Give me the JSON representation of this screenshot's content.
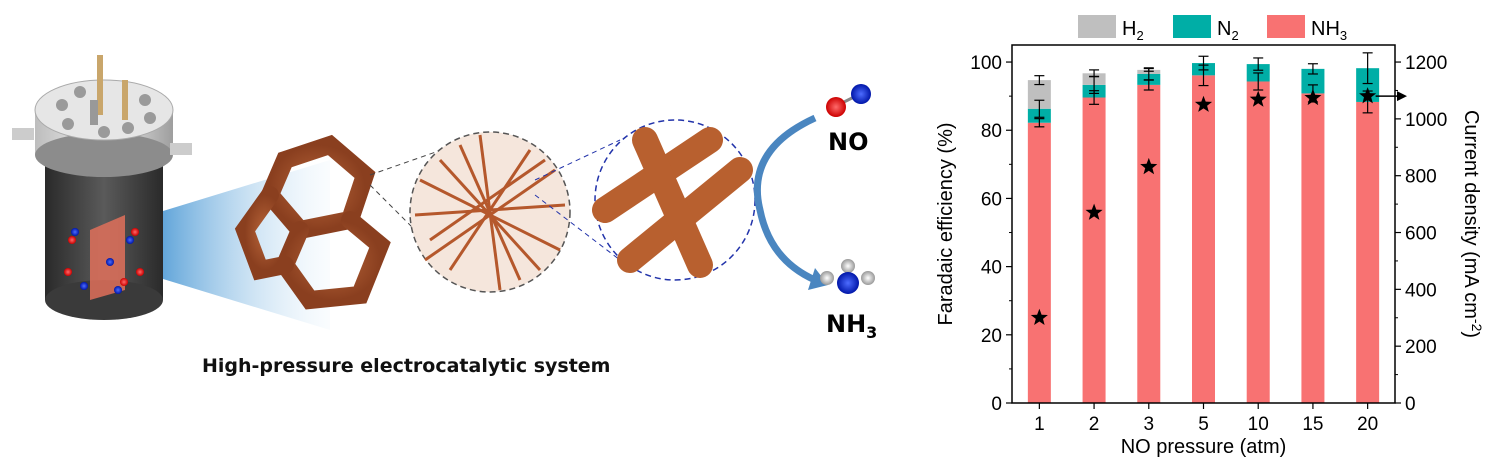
{
  "illustration": {
    "caption": "High-pressure electrocatalytic system",
    "reactant_label": "NO",
    "product_label": "NH",
    "product_subscript": "3"
  },
  "chart_data": {
    "type": "bar",
    "stacked": true,
    "categories": [
      "1",
      "2",
      "3",
      "5",
      "10",
      "15",
      "20"
    ],
    "xlabel": "NO pressure (atm)",
    "ylabel": "Faradaic efficiency (%)",
    "ylabel_right": "Current density (mA cm",
    "ylabel_right_sup": "-2",
    "ylabel_right_end": ")",
    "ylim": [
      0,
      105
    ],
    "yticks": [
      0,
      20,
      40,
      60,
      80,
      100
    ],
    "ylim_right": [
      0,
      1260
    ],
    "yticks_right": [
      0,
      200,
      400,
      600,
      800,
      1000,
      1200
    ],
    "grid": false,
    "legend_placement": "top",
    "legend": [
      {
        "name": "H",
        "sub": "2",
        "color": "#bfbfbf"
      },
      {
        "name": "N",
        "sub": "2",
        "color": "#00aea6"
      },
      {
        "name": "NH",
        "sub": "3",
        "color": "#f87272"
      }
    ],
    "series": [
      {
        "name": "NH3",
        "color": "#f87272",
        "values": [
          82.2,
          89.6,
          93.3,
          96.1,
          94.3,
          90.8,
          88.3
        ],
        "errors": [
          1.2,
          2.0,
          1.5,
          3.0,
          2.5,
          2.5,
          3.2
        ]
      },
      {
        "name": "N2",
        "color": "#00aea6",
        "values": [
          4.1,
          3.7,
          3.2,
          3.6,
          5.1,
          7.2,
          9.9
        ],
        "errors": [
          2.5,
          2.5,
          1.8,
          2.0,
          1.8,
          1.5,
          4.5
        ]
      },
      {
        "name": "H2",
        "color": "#bfbfbf",
        "values": [
          8.4,
          3.4,
          1.2,
          0,
          0,
          0,
          0
        ],
        "errors": [
          1.3,
          1.0,
          0.4,
          0,
          0,
          0,
          0
        ]
      }
    ],
    "current_density": {
      "marker": "star",
      "axis": "right",
      "values": [
        300,
        670,
        831,
        1050,
        1068,
        1074,
        1080
      ]
    }
  }
}
